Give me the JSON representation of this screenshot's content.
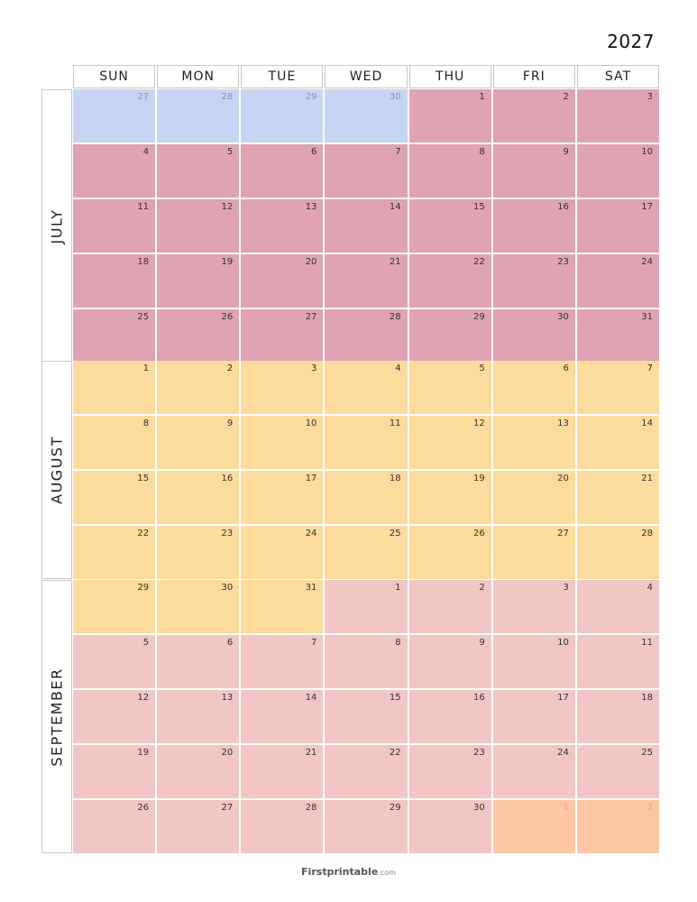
{
  "year": "2027",
  "weekdays": [
    "SUN",
    "MON",
    "TUE",
    "WED",
    "THU",
    "FRI",
    "SAT"
  ],
  "colors": {
    "prev": "#c5d5f3",
    "july": "#e0a3b3",
    "august": "#fcdb9c",
    "september": "#f1c6c5",
    "next": "#fdc6a4"
  },
  "months": [
    {
      "name": "JULY",
      "weeks": [
        [
          {
            "d": "27",
            "t": "prev"
          },
          {
            "d": "28",
            "t": "prev"
          },
          {
            "d": "29",
            "t": "prev"
          },
          {
            "d": "30",
            "t": "prev"
          },
          {
            "d": "1",
            "t": "july"
          },
          {
            "d": "2",
            "t": "july"
          },
          {
            "d": "3",
            "t": "july"
          }
        ],
        [
          {
            "d": "4",
            "t": "july"
          },
          {
            "d": "5",
            "t": "july"
          },
          {
            "d": "6",
            "t": "july"
          },
          {
            "d": "7",
            "t": "july"
          },
          {
            "d": "8",
            "t": "july"
          },
          {
            "d": "9",
            "t": "july"
          },
          {
            "d": "10",
            "t": "july"
          }
        ],
        [
          {
            "d": "11",
            "t": "july"
          },
          {
            "d": "12",
            "t": "july"
          },
          {
            "d": "13",
            "t": "july"
          },
          {
            "d": "14",
            "t": "july"
          },
          {
            "d": "15",
            "t": "july"
          },
          {
            "d": "16",
            "t": "july"
          },
          {
            "d": "17",
            "t": "july"
          }
        ],
        [
          {
            "d": "18",
            "t": "july"
          },
          {
            "d": "19",
            "t": "july"
          },
          {
            "d": "20",
            "t": "july"
          },
          {
            "d": "21",
            "t": "july"
          },
          {
            "d": "22",
            "t": "july"
          },
          {
            "d": "23",
            "t": "july"
          },
          {
            "d": "24",
            "t": "july"
          }
        ],
        [
          {
            "d": "25",
            "t": "july"
          },
          {
            "d": "26",
            "t": "july"
          },
          {
            "d": "27",
            "t": "july"
          },
          {
            "d": "28",
            "t": "july"
          },
          {
            "d": "29",
            "t": "july"
          },
          {
            "d": "30",
            "t": "july"
          },
          {
            "d": "31",
            "t": "july"
          }
        ]
      ]
    },
    {
      "name": "AUGUST",
      "weeks": [
        [
          {
            "d": "1",
            "t": "august"
          },
          {
            "d": "2",
            "t": "august"
          },
          {
            "d": "3",
            "t": "august"
          },
          {
            "d": "4",
            "t": "august"
          },
          {
            "d": "5",
            "t": "august"
          },
          {
            "d": "6",
            "t": "august"
          },
          {
            "d": "7",
            "t": "august"
          }
        ],
        [
          {
            "d": "8",
            "t": "august"
          },
          {
            "d": "9",
            "t": "august"
          },
          {
            "d": "10",
            "t": "august"
          },
          {
            "d": "11",
            "t": "august"
          },
          {
            "d": "12",
            "t": "august"
          },
          {
            "d": "13",
            "t": "august"
          },
          {
            "d": "14",
            "t": "august"
          }
        ],
        [
          {
            "d": "15",
            "t": "august"
          },
          {
            "d": "16",
            "t": "august"
          },
          {
            "d": "17",
            "t": "august"
          },
          {
            "d": "18",
            "t": "august"
          },
          {
            "d": "19",
            "t": "august"
          },
          {
            "d": "20",
            "t": "august"
          },
          {
            "d": "21",
            "t": "august"
          }
        ],
        [
          {
            "d": "22",
            "t": "august"
          },
          {
            "d": "23",
            "t": "august"
          },
          {
            "d": "24",
            "t": "august"
          },
          {
            "d": "25",
            "t": "august"
          },
          {
            "d": "26",
            "t": "august"
          },
          {
            "d": "27",
            "t": "august"
          },
          {
            "d": "28",
            "t": "august"
          }
        ]
      ]
    },
    {
      "name": "SEPTEMBER",
      "weeks": [
        [
          {
            "d": "29",
            "t": "august"
          },
          {
            "d": "30",
            "t": "august"
          },
          {
            "d": "31",
            "t": "august"
          },
          {
            "d": "1",
            "t": "september"
          },
          {
            "d": "2",
            "t": "september"
          },
          {
            "d": "3",
            "t": "september"
          },
          {
            "d": "4",
            "t": "september"
          }
        ],
        [
          {
            "d": "5",
            "t": "september"
          },
          {
            "d": "6",
            "t": "september"
          },
          {
            "d": "7",
            "t": "september"
          },
          {
            "d": "8",
            "t": "september"
          },
          {
            "d": "9",
            "t": "september"
          },
          {
            "d": "10",
            "t": "september"
          },
          {
            "d": "11",
            "t": "september"
          }
        ],
        [
          {
            "d": "12",
            "t": "september"
          },
          {
            "d": "13",
            "t": "september"
          },
          {
            "d": "14",
            "t": "september"
          },
          {
            "d": "15",
            "t": "september"
          },
          {
            "d": "16",
            "t": "september"
          },
          {
            "d": "17",
            "t": "september"
          },
          {
            "d": "18",
            "t": "september"
          }
        ],
        [
          {
            "d": "19",
            "t": "september"
          },
          {
            "d": "20",
            "t": "september"
          },
          {
            "d": "21",
            "t": "september"
          },
          {
            "d": "22",
            "t": "september"
          },
          {
            "d": "23",
            "t": "september"
          },
          {
            "d": "24",
            "t": "september"
          },
          {
            "d": "25",
            "t": "september"
          }
        ],
        [
          {
            "d": "26",
            "t": "september"
          },
          {
            "d": "27",
            "t": "september"
          },
          {
            "d": "28",
            "t": "september"
          },
          {
            "d": "29",
            "t": "september"
          },
          {
            "d": "30",
            "t": "september"
          },
          {
            "d": "1",
            "t": "next"
          },
          {
            "d": "2",
            "t": "next"
          }
        ]
      ]
    }
  ],
  "footer": {
    "brand": "Firstprintable",
    "domain": ".com"
  }
}
